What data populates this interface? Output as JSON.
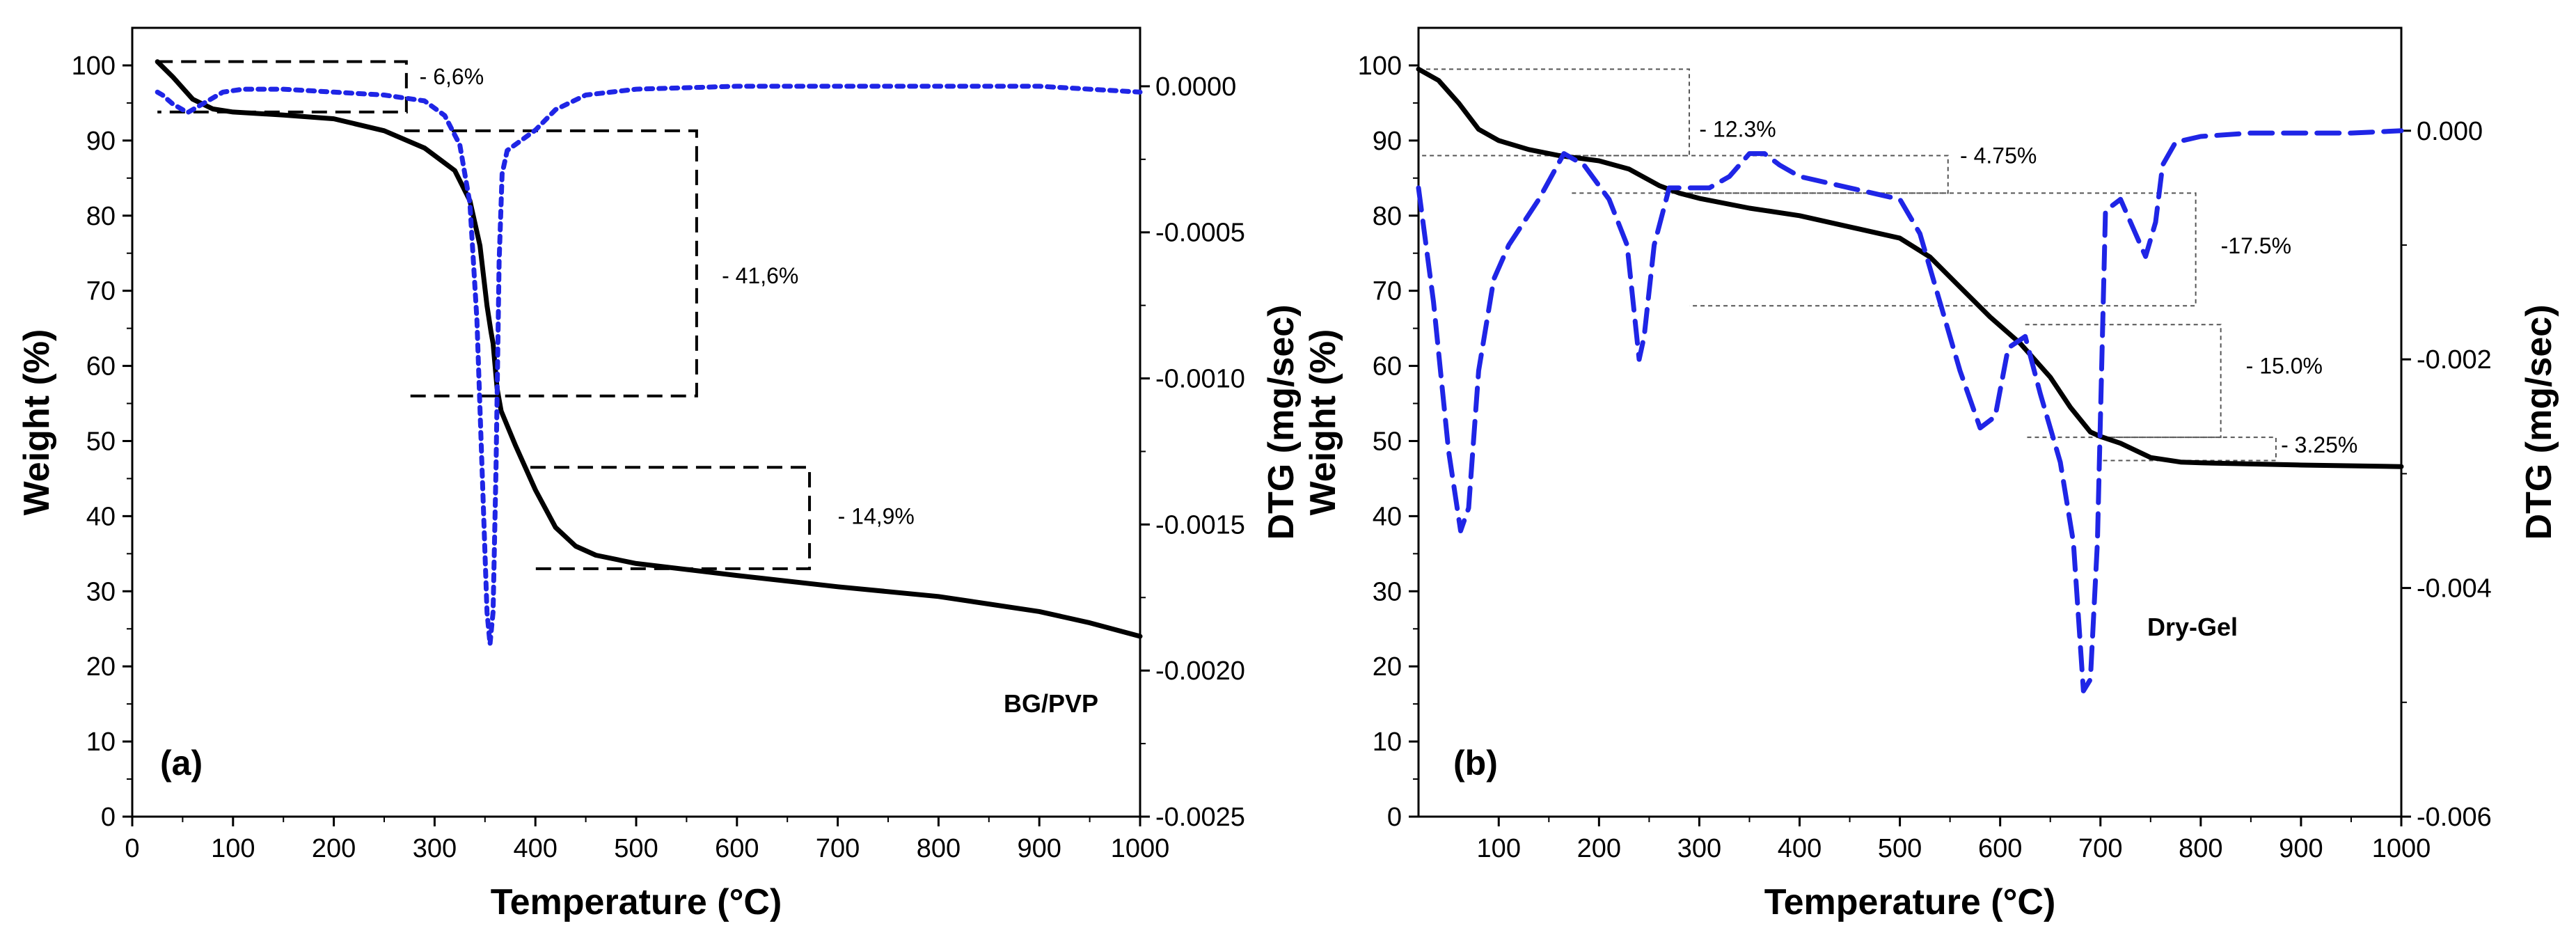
{
  "chart_data": [
    {
      "type": "line",
      "panel_label": "(a)",
      "sample_label": "BG/PVP",
      "xlabel": "Temperature (°C)",
      "ylabel": "Weight (%)",
      "y2label": "DTG (mg/sec)",
      "xlim": [
        0,
        1000
      ],
      "ylim": [
        0,
        105
      ],
      "y2lim": [
        -0.0025,
        0.0002
      ],
      "xticks": [
        0,
        100,
        200,
        300,
        400,
        500,
        600,
        700,
        800,
        900,
        1000
      ],
      "yticks": [
        0,
        10,
        20,
        30,
        40,
        50,
        60,
        70,
        80,
        90,
        100
      ],
      "y2ticks": [
        0.0,
        -0.0005,
        -0.001,
        -0.0015,
        -0.002,
        -0.0025
      ],
      "y2tick_labels": [
        "0.0000",
        "-0.0005",
        "-0.0010",
        "-0.0015",
        "-0.0020",
        "-0.0025"
      ],
      "colors": {
        "weight": "#000000",
        "dtg": "#1f25e6",
        "guide": "#000000"
      },
      "series": [
        {
          "name": "Weight",
          "axis": "left",
          "style": "solid",
          "x": [
            25,
            40,
            60,
            80,
            100,
            150,
            200,
            250,
            290,
            320,
            335,
            345,
            352,
            356,
            358,
            362,
            366,
            380,
            400,
            420,
            440,
            460,
            500,
            600,
            700,
            800,
            900,
            950,
            1000
          ],
          "y": [
            100.5,
            98.5,
            95.5,
            94.2,
            93.8,
            93.4,
            92.9,
            91.3,
            89,
            86,
            82,
            76,
            68,
            64.5,
            63,
            57,
            54,
            49.5,
            43.5,
            38.5,
            36,
            34.8,
            33.7,
            32.1,
            30.6,
            29.3,
            27.3,
            25.8,
            24
          ]
        },
        {
          "name": "DTG",
          "axis": "right",
          "style": "dotted",
          "x": [
            25,
            30,
            40,
            55,
            70,
            90,
            110,
            150,
            200,
            250,
            290,
            310,
            325,
            335,
            342,
            348,
            352,
            355,
            358,
            361,
            364,
            367,
            372,
            380,
            400,
            420,
            450,
            500,
            600,
            700,
            800,
            900,
            1000
          ],
          "y": [
            -2e-05,
            -3e-05,
            -6e-05,
            -9e-05,
            -6e-05,
            -2e-05,
            -1e-05,
            -1e-05,
            -2e-05,
            -3e-05,
            -5e-05,
            -0.0001,
            -0.0002,
            -0.0004,
            -0.0008,
            -0.0014,
            -0.0018,
            -0.00191,
            -0.0018,
            -0.0013,
            -0.0006,
            -0.0003,
            -0.00022,
            -0.0002,
            -0.00015,
            -8e-05,
            -3e-05,
            -1e-05,
            0.0,
            0.0,
            0.0,
            0.0,
            -2e-05
          ]
        }
      ],
      "annotations": [
        {
          "text": "- 6,6%",
          "x": 285,
          "y": 98.5
        },
        {
          "text": "- 41,6%",
          "x": 585,
          "y": 72
        },
        {
          "text": "- 14,9%",
          "x": 700,
          "y": 40
        }
      ],
      "guides": [
        {
          "x0": 25,
          "x1": 272,
          "y_top": 100.5,
          "y_bot": 93.8
        },
        {
          "x0": 270,
          "x1": 560,
          "y_top": 91.3,
          "y_bot": 56
        },
        {
          "x0": 395,
          "x1": 672,
          "y_top": 46.5,
          "y_bot": 33
        }
      ]
    },
    {
      "type": "line",
      "panel_label": "(b)",
      "sample_label": "Dry-Gel",
      "xlabel": "Temperature (°C)",
      "ylabel": "Weight (%)",
      "y2label": "DTG (mg/sec)",
      "xlim": [
        20,
        1000
      ],
      "ylim": [
        0,
        105
      ],
      "y2lim": [
        -0.006,
        0.0009
      ],
      "xticks": [
        100,
        200,
        300,
        400,
        500,
        600,
        700,
        800,
        900,
        1000
      ],
      "yticks": [
        0,
        10,
        20,
        30,
        40,
        50,
        60,
        70,
        80,
        90,
        100
      ],
      "y2ticks": [
        0.0,
        -0.002,
        -0.004,
        -0.006
      ],
      "y2tick_labels": [
        "0.000",
        "-0.002",
        "-0.004",
        "-0.006"
      ],
      "colors": {
        "weight": "#000000",
        "dtg": "#1f25e6",
        "guide": "#555555"
      },
      "series": [
        {
          "name": "Weight",
          "axis": "left",
          "style": "solid",
          "x": [
            20,
            40,
            60,
            80,
            100,
            130,
            160,
            200,
            230,
            260,
            280,
            300,
            350,
            400,
            450,
            500,
            530,
            560,
            590,
            620,
            650,
            670,
            690,
            700,
            720,
            750,
            780,
            800,
            900,
            1000
          ],
          "y": [
            99.5,
            98,
            95,
            91.5,
            90,
            88.8,
            88,
            87.3,
            86.2,
            84,
            83,
            82.3,
            81,
            80,
            78.5,
            77,
            74.5,
            70.5,
            66.5,
            63,
            58.5,
            54.5,
            51.2,
            50.6,
            49.7,
            47.8,
            47.2,
            47.1,
            46.8,
            46.6
          ]
        },
        {
          "name": "DTG",
          "axis": "right",
          "style": "dashed",
          "x": [
            20,
            35,
            50,
            62,
            70,
            80,
            95,
            110,
            140,
            165,
            185,
            210,
            228,
            240,
            245,
            255,
            270,
            290,
            310,
            330,
            350,
            365,
            380,
            400,
            450,
            500,
            520,
            540,
            560,
            580,
            595,
            608,
            625,
            640,
            660,
            673,
            683,
            690,
            697,
            705,
            720,
            735,
            745,
            755,
            762,
            775,
            800,
            850,
            900,
            950,
            1000
          ],
          "y": [
            -0.0005,
            -0.0015,
            -0.0028,
            -0.0035,
            -0.0033,
            -0.0021,
            -0.0013,
            -0.001,
            -0.0006,
            -0.0002,
            -0.0003,
            -0.0006,
            -0.001,
            -0.002,
            -0.0018,
            -0.001,
            -0.0005,
            -0.0005,
            -0.0005,
            -0.0004,
            -0.0002,
            -0.0002,
            -0.0003,
            -0.0004,
            -0.0005,
            -0.0006,
            -0.0009,
            -0.0015,
            -0.0021,
            -0.0026,
            -0.0025,
            -0.0019,
            -0.0018,
            -0.0023,
            -0.0029,
            -0.0036,
            -0.0049,
            -0.0048,
            -0.0036,
            -0.0007,
            -0.0006,
            -0.0009,
            -0.0011,
            -0.0008,
            -0.0003,
            -0.0001,
            -5e-05,
            -2e-05,
            -2e-05,
            -2e-05,
            0.0
          ]
        }
      ],
      "annotations": [
        {
          "text": "- 12.3%",
          "x": 300,
          "y": 91.5
        },
        {
          "text": "- 4.75%",
          "x": 560,
          "y": 88
        },
        {
          "text": "-17.5%",
          "x": 820,
          "y": 76
        },
        {
          "text": "- 15.0%",
          "x": 845,
          "y": 60
        },
        {
          "text": "- 3.25%",
          "x": 880,
          "y": 49.5
        }
      ],
      "guides": [
        {
          "x0": 20,
          "x1": 290,
          "y_top": 99.5,
          "y_bot": 88
        },
        {
          "x0": 170,
          "x1": 548,
          "y_top": 88,
          "y_bot": 83
        },
        {
          "x0": 290,
          "x1": 795,
          "y_top": 83,
          "y_bot": 68
        },
        {
          "x0": 625,
          "x1": 820,
          "y_top": 65.5,
          "y_bot": 50.5
        },
        {
          "x0": 700,
          "x1": 875,
          "y_top": 50.5,
          "y_bot": 47.4
        }
      ]
    }
  ]
}
